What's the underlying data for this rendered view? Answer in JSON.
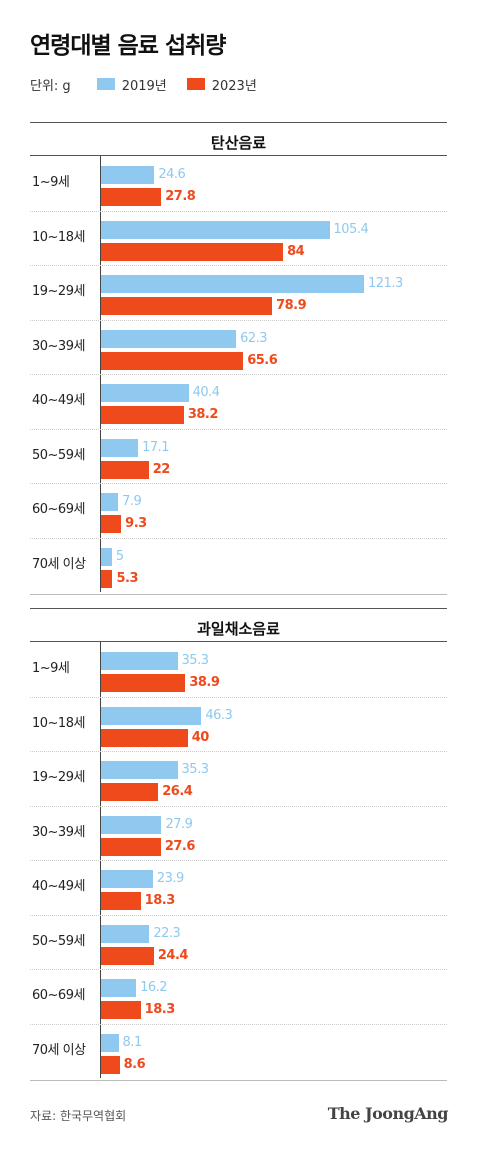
{
  "title": "연령대별 음료 섭취량",
  "unit_label": "단위: g",
  "colors": {
    "series_2019": "#8fc9ef",
    "series_2023": "#ef4a1c"
  },
  "source": "자료: 한국무역협회",
  "brand": "The JoongAng",
  "chart_data": [
    {
      "type": "bar",
      "orientation": "horizontal",
      "title": "탄산음료",
      "categories": [
        "1~9세",
        "10~18세",
        "19~29세",
        "30~39세",
        "40~49세",
        "50~59세",
        "60~69세",
        "70세 이상"
      ],
      "series": [
        {
          "name": "2019년",
          "values": [
            24.6,
            105.4,
            121.3,
            62.3,
            40.4,
            17.1,
            7.9,
            5
          ]
        },
        {
          "name": "2023년",
          "values": [
            27.8,
            84,
            78.9,
            65.6,
            38.2,
            22,
            9.3,
            5.3
          ]
        }
      ],
      "legend": "top-left",
      "grid": false
    },
    {
      "type": "bar",
      "orientation": "horizontal",
      "title": "과일채소음료",
      "categories": [
        "1~9세",
        "10~18세",
        "19~29세",
        "30~39세",
        "40~49세",
        "50~59세",
        "60~69세",
        "70세 이상"
      ],
      "series": [
        {
          "name": "2019년",
          "values": [
            35.3,
            46.3,
            35.3,
            27.9,
            23.9,
            22.3,
            16.2,
            8.1
          ]
        },
        {
          "name": "2023년",
          "values": [
            38.9,
            40,
            26.4,
            27.6,
            18.3,
            24.4,
            18.3,
            8.6
          ]
        }
      ],
      "legend": "top-left",
      "grid": false
    }
  ]
}
